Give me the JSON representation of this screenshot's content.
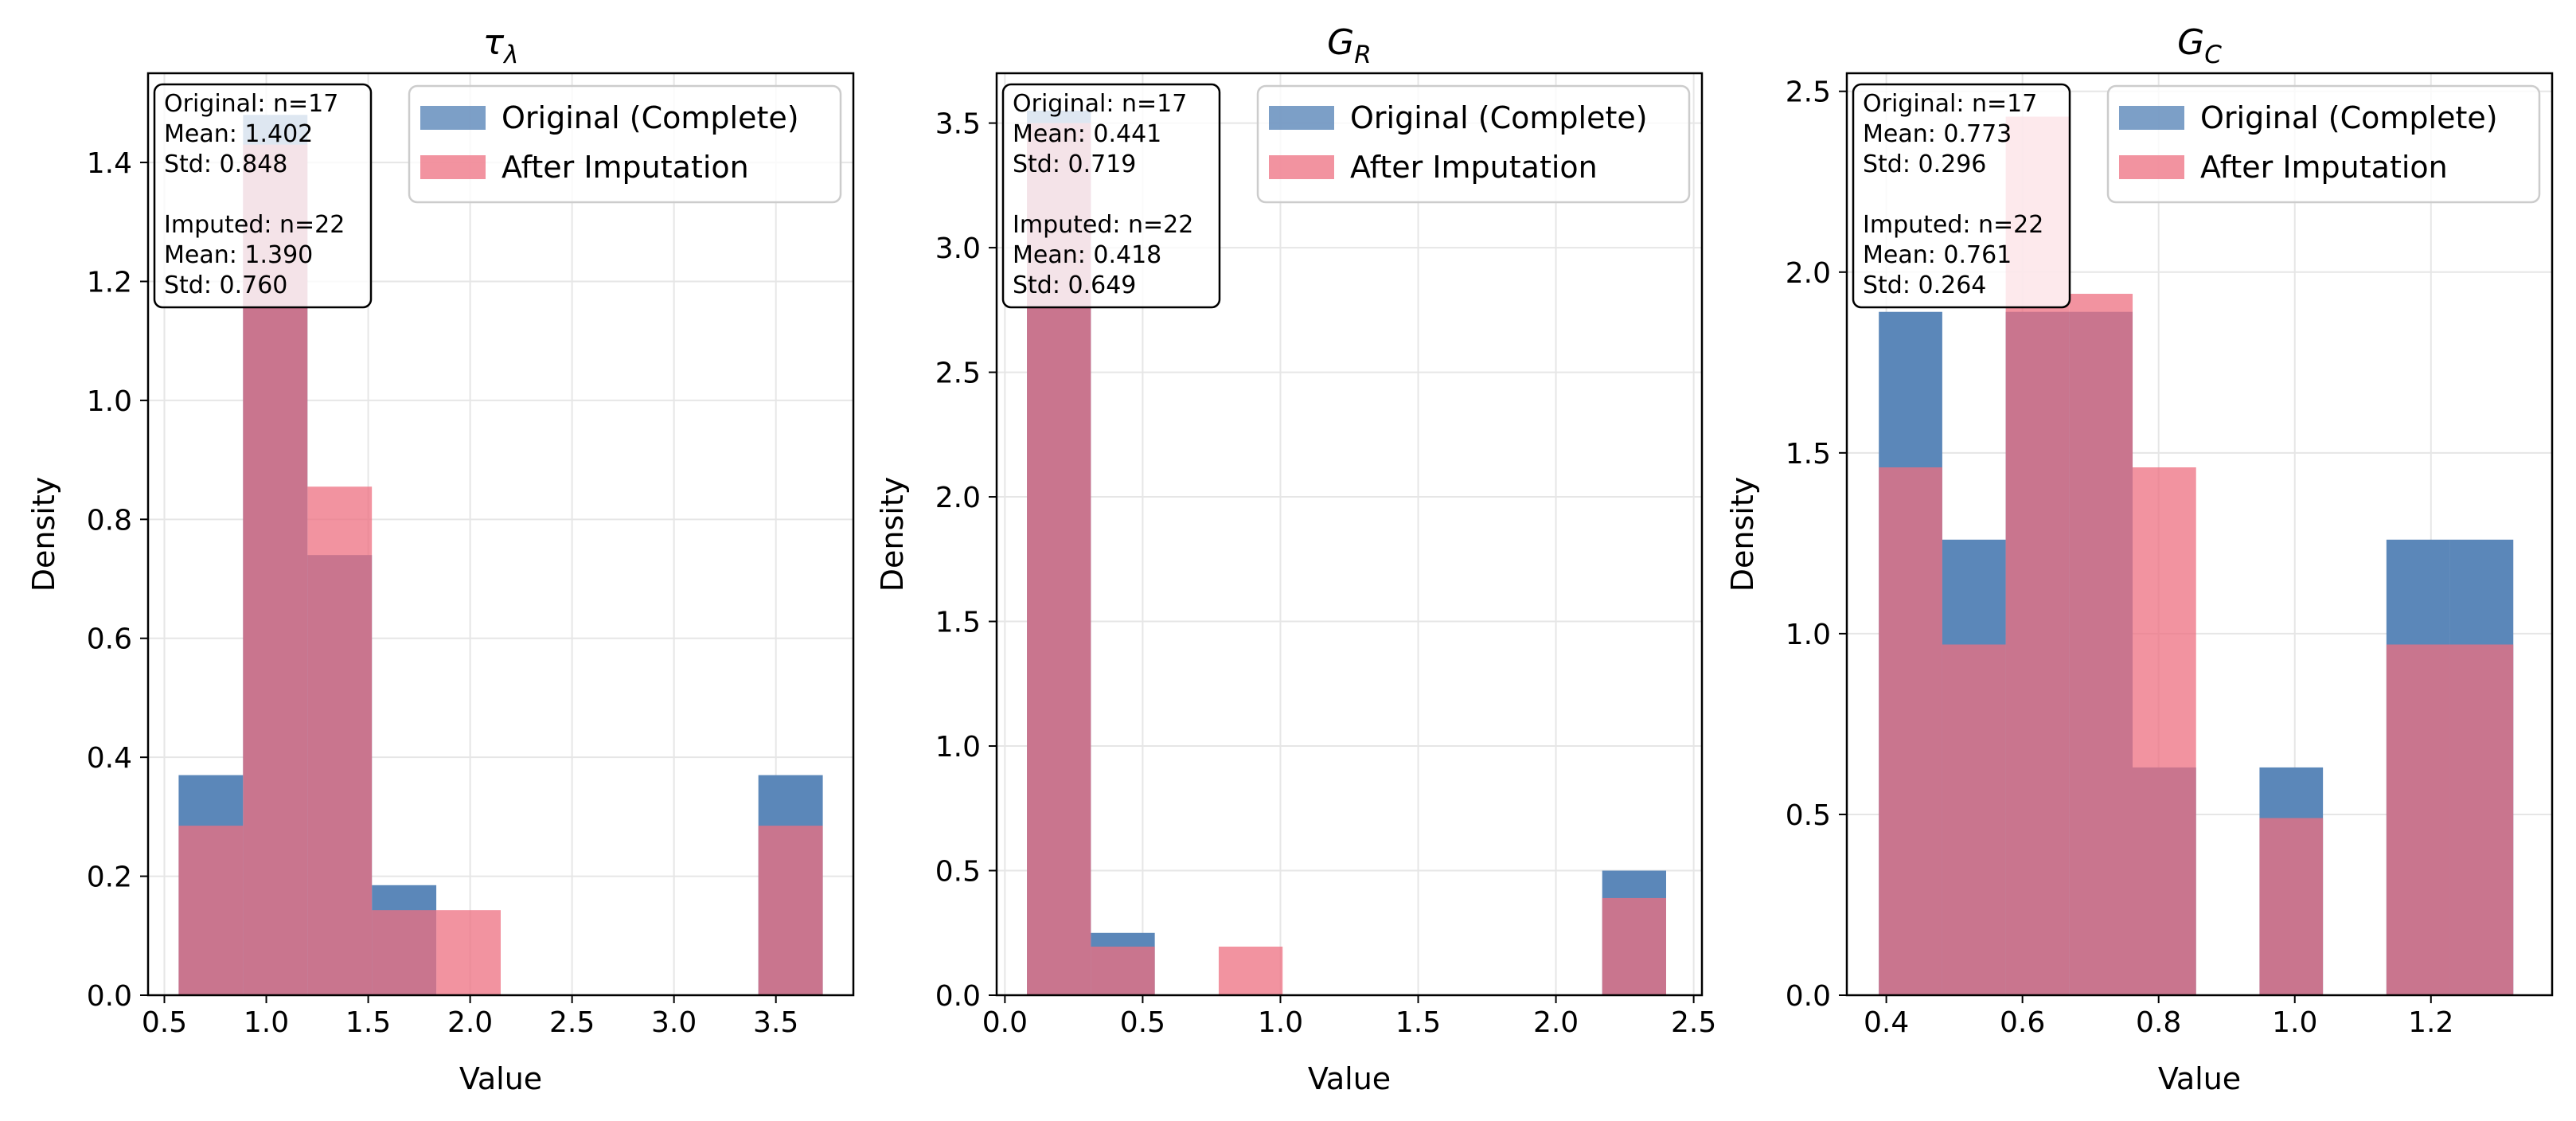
{
  "colors": {
    "original": "#5B87B9",
    "imputed": "#EE6F80",
    "overlap": "#CC7A8C",
    "grid": "#e6e6e6",
    "axis": "#000000"
  },
  "chart_data": [
    {
      "type": "histogram",
      "title_base": "τ",
      "title_sub": "λ",
      "xlabel": "Value",
      "ylabel": "Density",
      "xlim": [
        0.42,
        3.88
      ],
      "ylim": [
        0,
        1.55
      ],
      "xticks": [
        "0.5",
        "1.0",
        "1.5",
        "2.0",
        "2.5",
        "3.0",
        "3.5"
      ],
      "xtick_values": [
        0.5,
        1.0,
        1.5,
        2.0,
        2.5,
        3.0,
        3.5
      ],
      "yticks": [
        "0.0",
        "0.2",
        "0.4",
        "0.6",
        "0.8",
        "1.0",
        "1.2",
        "1.4"
      ],
      "ytick_values": [
        0,
        0.2,
        0.4,
        0.6,
        0.8,
        1.0,
        1.2,
        1.4
      ],
      "legend": [
        "Original (Complete)",
        "After Imputation"
      ],
      "legend_position": "top-right",
      "stats": [
        "Original: n=17",
        "Mean: 1.402",
        "Std: 0.848",
        "",
        "Imputed: n=22",
        "Mean: 1.390",
        "Std: 0.760"
      ],
      "series": [
        {
          "name": "Original (Complete)",
          "bins": [
            [
              0.57,
              0.886,
              0.37
            ],
            [
              0.886,
              1.202,
              1.48
            ],
            [
              1.202,
              1.518,
              0.74
            ],
            [
              1.518,
              1.834,
              0.185
            ],
            [
              1.834,
              2.15,
              0
            ],
            [
              2.15,
              2.466,
              0
            ],
            [
              2.466,
              2.782,
              0
            ],
            [
              2.782,
              3.098,
              0
            ],
            [
              3.098,
              3.414,
              0
            ],
            [
              3.414,
              3.73,
              0.37
            ]
          ]
        },
        {
          "name": "After Imputation",
          "bins": [
            [
              0.57,
              0.886,
              0.285
            ],
            [
              0.886,
              1.202,
              1.43
            ],
            [
              1.202,
              1.518,
              0.855
            ],
            [
              1.518,
              1.834,
              0.143
            ],
            [
              1.834,
              2.15,
              0.143
            ],
            [
              2.15,
              2.466,
              0
            ],
            [
              2.466,
              2.782,
              0
            ],
            [
              2.782,
              3.098,
              0
            ],
            [
              3.098,
              3.414,
              0
            ],
            [
              3.414,
              3.73,
              0.285
            ]
          ]
        }
      ]
    },
    {
      "type": "histogram",
      "title_base": "G",
      "title_sub": "R",
      "xlabel": "Value",
      "ylabel": "Density",
      "xlim": [
        -0.03,
        2.53
      ],
      "ylim": [
        0,
        3.7
      ],
      "xticks": [
        "0.0",
        "0.5",
        "1.0",
        "1.5",
        "2.0",
        "2.5"
      ],
      "xtick_values": [
        0,
        0.5,
        1.0,
        1.5,
        2.0,
        2.5
      ],
      "yticks": [
        "0.0",
        "0.5",
        "1.0",
        "1.5",
        "2.0",
        "2.5",
        "3.0",
        "3.5"
      ],
      "ytick_values": [
        0,
        0.5,
        1.0,
        1.5,
        2.0,
        2.5,
        3.0,
        3.5
      ],
      "legend": [
        "Original (Complete)",
        "After Imputation"
      ],
      "legend_position": "top-right",
      "stats": [
        "Original: n=17",
        "Mean: 0.441",
        "Std: 0.719",
        "",
        "Imputed: n=22",
        "Mean: 0.418",
        "Std: 0.649"
      ],
      "series": [
        {
          "name": "Original (Complete)",
          "bins": [
            [
              0.08,
              0.312,
              3.55
            ],
            [
              0.312,
              0.544,
              0.25
            ],
            [
              0.544,
              0.776,
              0
            ],
            [
              0.776,
              1.008,
              0
            ],
            [
              1.008,
              1.24,
              0
            ],
            [
              1.24,
              1.472,
              0
            ],
            [
              1.472,
              1.704,
              0
            ],
            [
              1.704,
              1.936,
              0
            ],
            [
              1.936,
              2.168,
              0
            ],
            [
              2.168,
              2.4,
              0.5
            ]
          ]
        },
        {
          "name": "After Imputation",
          "bins": [
            [
              0.08,
              0.312,
              3.5
            ],
            [
              0.312,
              0.544,
              0.195
            ],
            [
              0.544,
              0.776,
              0
            ],
            [
              0.776,
              1.008,
              0.195
            ],
            [
              1.008,
              1.24,
              0
            ],
            [
              1.24,
              1.472,
              0
            ],
            [
              1.472,
              1.704,
              0
            ],
            [
              1.704,
              1.936,
              0
            ],
            [
              1.936,
              2.168,
              0
            ],
            [
              2.168,
              2.4,
              0.39
            ]
          ]
        }
      ]
    },
    {
      "type": "histogram",
      "title_base": "G",
      "title_sub": "C",
      "xlabel": "Value",
      "ylabel": "Density",
      "xlim": [
        0.342,
        1.378
      ],
      "ylim": [
        0,
        2.55
      ],
      "xticks": [
        "0.4",
        "0.6",
        "0.8",
        "1.0",
        "1.2"
      ],
      "xtick_values": [
        0.4,
        0.6,
        0.8,
        1.0,
        1.2
      ],
      "yticks": [
        "0.0",
        "0.5",
        "1.0",
        "1.5",
        "2.0",
        "2.5"
      ],
      "ytick_values": [
        0,
        0.5,
        1.0,
        1.5,
        2.0,
        2.5
      ],
      "legend": [
        "Original (Complete)",
        "After Imputation"
      ],
      "legend_position": "top-right",
      "stats": [
        "Original: n=17",
        "Mean: 0.773",
        "Std: 0.296",
        "",
        "Imputed: n=22",
        "Mean: 0.761",
        "Std: 0.264"
      ],
      "series": [
        {
          "name": "Original (Complete)",
          "bins": [
            [
              0.389,
              0.4822,
              1.89
            ],
            [
              0.4822,
              0.5754,
              1.26
            ],
            [
              0.5754,
              0.6686,
              1.89
            ],
            [
              0.6686,
              0.7618,
              1.89
            ],
            [
              0.7618,
              0.855,
              0.63
            ],
            [
              0.855,
              0.9482,
              0
            ],
            [
              0.9482,
              1.0414,
              0.63
            ],
            [
              1.0414,
              1.1346,
              0
            ],
            [
              1.1346,
              1.2278,
              1.26
            ],
            [
              1.2278,
              1.321,
              1.26
            ]
          ]
        },
        {
          "name": "After Imputation",
          "bins": [
            [
              0.389,
              0.4822,
              1.46
            ],
            [
              0.4822,
              0.5754,
              0.97
            ],
            [
              0.5754,
              0.6686,
              2.43
            ],
            [
              0.6686,
              0.7618,
              1.94
            ],
            [
              0.7618,
              0.855,
              1.46
            ],
            [
              0.855,
              0.9482,
              0
            ],
            [
              0.9482,
              1.0414,
              0.49
            ],
            [
              1.0414,
              1.1346,
              0
            ],
            [
              1.1346,
              1.2278,
              0.97
            ],
            [
              1.2278,
              1.321,
              0.97
            ]
          ]
        }
      ]
    }
  ]
}
